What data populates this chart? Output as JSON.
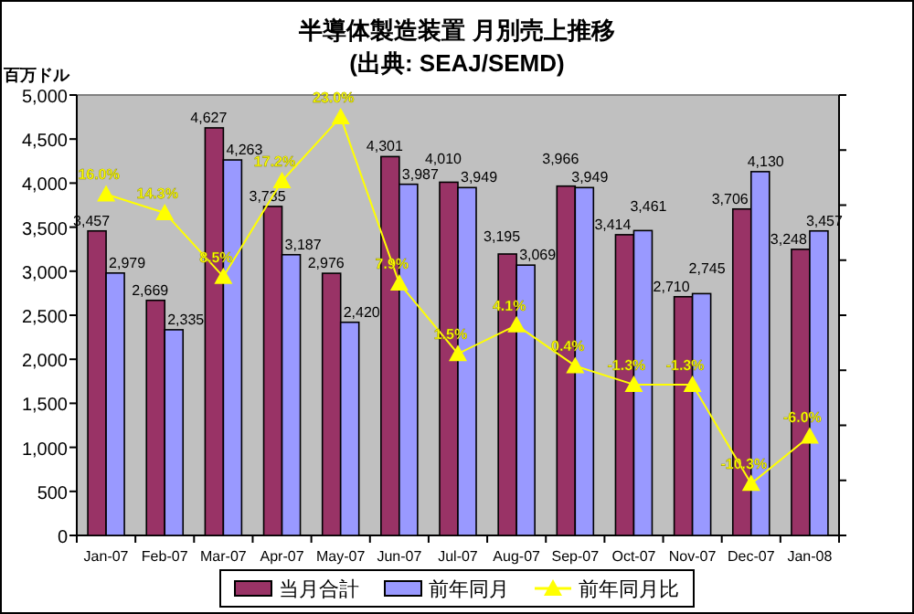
{
  "chart_data": {
    "type": "bar",
    "title": "半導体製造装置 月別売上推移",
    "subtitle": "(出典: SEAJ/SEMD)",
    "ylabel": "百万ドル",
    "categories": [
      "Jan-07",
      "Feb-07",
      "Mar-07",
      "Apr-07",
      "May-07",
      "Jun-07",
      "Jul-07",
      "Aug-07",
      "Sep-07",
      "Oct-07",
      "Nov-07",
      "Dec-07",
      "Jan-08"
    ],
    "series": [
      {
        "name": "当月合計",
        "color": "#993366",
        "values": [
          3457,
          2669,
          4627,
          3735,
          2976,
          4301,
          4010,
          3195,
          3966,
          3414,
          2710,
          3706,
          3248
        ],
        "value_labels": [
          "3,457",
          "2,669",
          "4,627",
          "3,735",
          "2,976",
          "4,301",
          "4,010",
          "3,195",
          "3,966",
          "3,414",
          "2,710",
          "3,706",
          "3,248"
        ]
      },
      {
        "name": "前年同月",
        "color": "#9999ff",
        "values": [
          2979,
          2335,
          4263,
          3187,
          2420,
          3987,
          3949,
          3069,
          3949,
          3461,
          2745,
          4130,
          3457
        ],
        "value_labels": [
          "2,979",
          "2,335",
          "4,263",
          "3,187",
          "2,420",
          "3,987",
          "3,949",
          "3,069",
          "3,949",
          "3,461",
          "2,745",
          "4,130",
          "3,457"
        ]
      },
      {
        "name": "前年同月比",
        "type": "line",
        "axis": "y2",
        "color": "#ffff00",
        "marker": "triangle",
        "values": [
          16.0,
          14.3,
          8.5,
          17.2,
          23.0,
          7.9,
          1.5,
          4.1,
          0.4,
          -1.3,
          -1.3,
          -10.3,
          -6.0
        ],
        "value_labels": [
          "16.0%",
          "14.3%",
          "8.5%",
          "17.2%",
          "23.0%",
          "7.9%",
          "1.5%",
          "4.1%",
          "0.4%",
          "-1.3%",
          "-1.3%",
          "-10.3%",
          "-6.0%"
        ]
      }
    ],
    "ylim": [
      0,
      5000
    ],
    "yticks": [
      {
        "value": 0,
        "label": "0"
      },
      {
        "value": 500,
        "label": "500"
      },
      {
        "value": 1000,
        "label": "1,000"
      },
      {
        "value": 1500,
        "label": "1,500"
      },
      {
        "value": 2000,
        "label": "2,000"
      },
      {
        "value": 2500,
        "label": "2,500"
      },
      {
        "value": 3000,
        "label": "3,000"
      },
      {
        "value": 3500,
        "label": "3,500"
      },
      {
        "value": 4000,
        "label": "4,000"
      },
      {
        "value": 4500,
        "label": "4,500"
      },
      {
        "value": 5000,
        "label": "5,000"
      }
    ],
    "y2lim": [
      -15,
      25
    ],
    "y2ticks": [
      {
        "value": -15,
        "label": null
      },
      {
        "value": -10,
        "label": null
      },
      {
        "value": -5,
        "label": null
      },
      {
        "value": 0,
        "label": null
      },
      {
        "value": 5,
        "label": null
      },
      {
        "value": 10,
        "label": null
      },
      {
        "value": 15,
        "label": null
      },
      {
        "value": 20,
        "label": null
      },
      {
        "value": 25,
        "label": null
      }
    ],
    "legend": "bottom"
  }
}
